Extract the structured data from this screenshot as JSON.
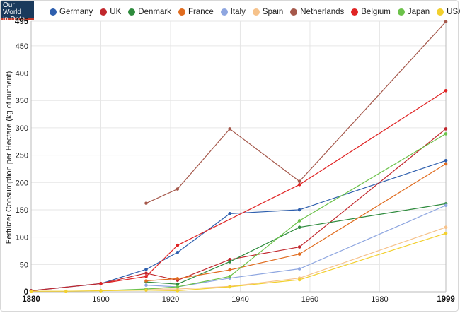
{
  "logo": {
    "line1": "Our World",
    "line2": "in Data"
  },
  "chart_data": {
    "type": "line",
    "title": "",
    "xlabel": "",
    "ylabel": "Fertilizer Consumption per Hectare (kg of nutrient)",
    "xlim": [
      1880,
      1999
    ],
    "ylim": [
      0,
      495
    ],
    "x_ticks": [
      {
        "value": 1880,
        "label": "1880",
        "bold": true
      },
      {
        "value": 1900,
        "label": "1900",
        "bold": false
      },
      {
        "value": 1920,
        "label": "1920",
        "bold": false
      },
      {
        "value": 1940,
        "label": "1940",
        "bold": false
      },
      {
        "value": 1960,
        "label": "1960",
        "bold": false
      },
      {
        "value": 1980,
        "label": "1980",
        "bold": false
      },
      {
        "value": 1999,
        "label": "1999",
        "bold": true
      }
    ],
    "y_ticks": [
      {
        "value": 0,
        "label": "0",
        "bold": true
      },
      {
        "value": 50,
        "label": "50",
        "bold": false
      },
      {
        "value": 100,
        "label": "100",
        "bold": false
      },
      {
        "value": 150,
        "label": "150",
        "bold": false
      },
      {
        "value": 200,
        "label": "200",
        "bold": false
      },
      {
        "value": 250,
        "label": "250",
        "bold": false
      },
      {
        "value": 300,
        "label": "300",
        "bold": false
      },
      {
        "value": 350,
        "label": "350",
        "bold": false
      },
      {
        "value": 400,
        "label": "400",
        "bold": false
      },
      {
        "value": 450,
        "label": "450",
        "bold": false
      },
      {
        "value": 495,
        "label": "495",
        "bold": true
      }
    ],
    "legend_position": "top",
    "series": [
      {
        "name": "Germany",
        "color": "#2e5fae",
        "points": [
          [
            1880,
            2
          ],
          [
            1900,
            15
          ],
          [
            1913,
            41
          ],
          [
            1922,
            72
          ],
          [
            1937,
            143
          ],
          [
            1957,
            150
          ],
          [
            1999,
            240
          ]
        ]
      },
      {
        "name": "UK",
        "color": "#c1272d",
        "points": [
          [
            1880,
            2
          ],
          [
            1900,
            15
          ],
          [
            1913,
            34
          ],
          [
            1922,
            21
          ],
          [
            1937,
            59
          ],
          [
            1957,
            82
          ],
          [
            1999,
            298
          ]
        ]
      },
      {
        "name": "Denmark",
        "color": "#2e8b3d",
        "points": [
          [
            1913,
            18
          ],
          [
            1922,
            14
          ],
          [
            1937,
            55
          ],
          [
            1957,
            118
          ],
          [
            1999,
            161
          ]
        ]
      },
      {
        "name": "France",
        "color": "#e06c1f",
        "points": [
          [
            1913,
            20
          ],
          [
            1922,
            24
          ],
          [
            1937,
            40
          ],
          [
            1957,
            69
          ],
          [
            1999,
            234
          ]
        ]
      },
      {
        "name": "Italy",
        "color": "#8ea6e0",
        "points": [
          [
            1913,
            12
          ],
          [
            1922,
            9
          ],
          [
            1937,
            25
          ],
          [
            1957,
            42
          ],
          [
            1999,
            158
          ]
        ]
      },
      {
        "name": "Spain",
        "color": "#f6c28b",
        "points": [
          [
            1913,
            5
          ],
          [
            1922,
            5
          ],
          [
            1937,
            10
          ],
          [
            1957,
            25
          ],
          [
            1999,
            118
          ]
        ]
      },
      {
        "name": "Netherlands",
        "color": "#a5584b",
        "points": [
          [
            1913,
            162
          ],
          [
            1922,
            188
          ],
          [
            1937,
            298
          ],
          [
            1957,
            202
          ],
          [
            1999,
            494
          ]
        ]
      },
      {
        "name": "Belgium",
        "color": "#e02424",
        "points": [
          [
            1900,
            15
          ],
          [
            1913,
            28
          ],
          [
            1922,
            85
          ],
          [
            1957,
            196
          ],
          [
            1999,
            368
          ]
        ]
      },
      {
        "name": "Japan",
        "color": "#6cc24a",
        "points": [
          [
            1900,
            2
          ],
          [
            1913,
            5
          ],
          [
            1922,
            9
          ],
          [
            1937,
            28
          ],
          [
            1957,
            130
          ],
          [
            1999,
            289
          ]
        ]
      },
      {
        "name": "USA",
        "color": "#f2d02f",
        "points": [
          [
            1880,
            1
          ],
          [
            1890,
            1
          ],
          [
            1900,
            2
          ],
          [
            1913,
            3
          ],
          [
            1922,
            2
          ],
          [
            1937,
            9
          ],
          [
            1957,
            22
          ],
          [
            1999,
            107
          ]
        ]
      }
    ]
  }
}
